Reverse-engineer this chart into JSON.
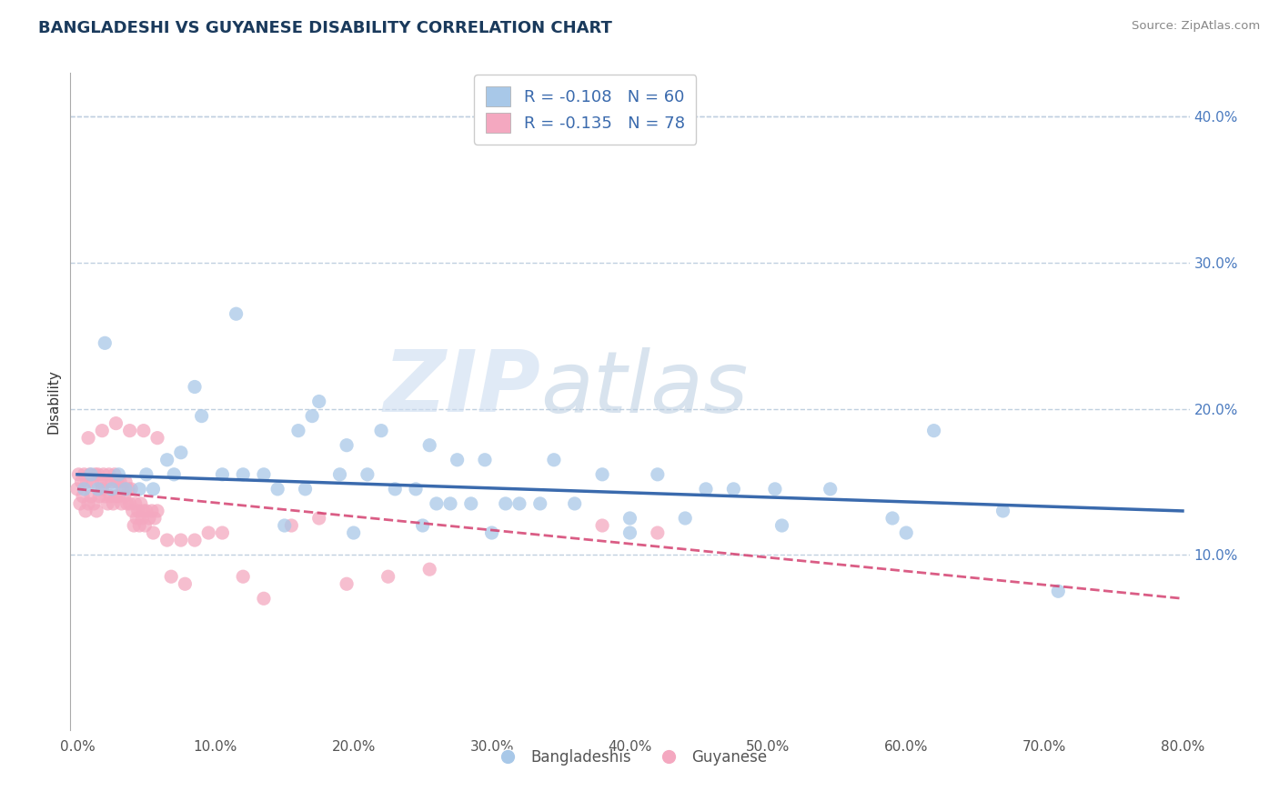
{
  "title": "BANGLADESHI VS GUYANESE DISABILITY CORRELATION CHART",
  "source_text": "Source: ZipAtlas.com",
  "ylabel": "Disability",
  "watermark": "ZIPatlas",
  "xlim": [
    -0.005,
    0.805
  ],
  "ylim": [
    -0.02,
    0.43
  ],
  "xticks": [
    0.0,
    0.1,
    0.2,
    0.3,
    0.4,
    0.5,
    0.6,
    0.7,
    0.8
  ],
  "xticklabels": [
    "0.0%",
    "10.0%",
    "20.0%",
    "30.0%",
    "40.0%",
    "50.0%",
    "60.0%",
    "70.0%",
    "80.0%"
  ],
  "yticks": [
    0.1,
    0.2,
    0.3,
    0.4
  ],
  "yticklabels": [
    "10.0%",
    "20.0%",
    "30.0%",
    "40.0%"
  ],
  "blue_color": "#a8c8e8",
  "pink_color": "#f4a8c0",
  "blue_line_color": "#3a6aad",
  "pink_line_color": "#d44070",
  "blue_R": -0.108,
  "blue_N": 60,
  "pink_R": -0.135,
  "pink_N": 78,
  "legend_label_blue": "Bangladeshis",
  "legend_label_pink": "Guyanese",
  "title_color": "#1a3a5c",
  "tick_color": "#555555",
  "grid_color": "#c0d0e0",
  "background_color": "#ffffff",
  "blue_trend_x0": 0.0,
  "blue_trend_y0": 0.155,
  "blue_trend_x1": 0.8,
  "blue_trend_y1": 0.13,
  "pink_trend_x0": 0.0,
  "pink_trend_y0": 0.145,
  "pink_trend_x1": 0.8,
  "pink_trend_y1": 0.07,
  "blue_scatter_x": [
    0.115,
    0.02,
    0.085,
    0.175,
    0.09,
    0.17,
    0.22,
    0.16,
    0.195,
    0.255,
    0.275,
    0.295,
    0.345,
    0.38,
    0.42,
    0.455,
    0.475,
    0.505,
    0.545,
    0.62,
    0.065,
    0.075,
    0.105,
    0.12,
    0.135,
    0.145,
    0.165,
    0.19,
    0.21,
    0.23,
    0.245,
    0.26,
    0.27,
    0.285,
    0.31,
    0.32,
    0.335,
    0.36,
    0.4,
    0.44,
    0.51,
    0.59,
    0.67,
    0.71,
    0.005,
    0.015,
    0.025,
    0.035,
    0.045,
    0.055,
    0.01,
    0.03,
    0.05,
    0.07,
    0.15,
    0.2,
    0.25,
    0.3,
    0.4,
    0.6
  ],
  "blue_scatter_y": [
    0.265,
    0.245,
    0.215,
    0.205,
    0.195,
    0.195,
    0.185,
    0.185,
    0.175,
    0.175,
    0.165,
    0.165,
    0.165,
    0.155,
    0.155,
    0.145,
    0.145,
    0.145,
    0.145,
    0.185,
    0.165,
    0.17,
    0.155,
    0.155,
    0.155,
    0.145,
    0.145,
    0.155,
    0.155,
    0.145,
    0.145,
    0.135,
    0.135,
    0.135,
    0.135,
    0.135,
    0.135,
    0.135,
    0.125,
    0.125,
    0.12,
    0.125,
    0.13,
    0.075,
    0.145,
    0.145,
    0.145,
    0.145,
    0.145,
    0.145,
    0.155,
    0.155,
    0.155,
    0.155,
    0.12,
    0.115,
    0.12,
    0.115,
    0.115,
    0.115
  ],
  "pink_scatter_x": [
    0.0,
    0.002,
    0.004,
    0.006,
    0.008,
    0.01,
    0.012,
    0.014,
    0.016,
    0.018,
    0.02,
    0.022,
    0.024,
    0.026,
    0.028,
    0.03,
    0.032,
    0.034,
    0.036,
    0.038,
    0.04,
    0.042,
    0.044,
    0.046,
    0.048,
    0.05,
    0.052,
    0.054,
    0.056,
    0.058,
    0.001,
    0.003,
    0.005,
    0.007,
    0.009,
    0.011,
    0.013,
    0.015,
    0.017,
    0.019,
    0.021,
    0.023,
    0.025,
    0.027,
    0.029,
    0.031,
    0.033,
    0.035,
    0.037,
    0.039,
    0.041,
    0.043,
    0.045,
    0.047,
    0.049,
    0.055,
    0.065,
    0.075,
    0.085,
    0.095,
    0.105,
    0.12,
    0.135,
    0.155,
    0.175,
    0.195,
    0.225,
    0.255,
    0.38,
    0.42,
    0.008,
    0.018,
    0.028,
    0.038,
    0.048,
    0.058,
    0.068,
    0.078
  ],
  "pink_scatter_y": [
    0.145,
    0.135,
    0.14,
    0.13,
    0.135,
    0.14,
    0.135,
    0.13,
    0.14,
    0.145,
    0.14,
    0.135,
    0.14,
    0.135,
    0.14,
    0.14,
    0.135,
    0.14,
    0.135,
    0.135,
    0.13,
    0.135,
    0.13,
    0.135,
    0.13,
    0.13,
    0.125,
    0.13,
    0.125,
    0.13,
    0.155,
    0.15,
    0.155,
    0.15,
    0.155,
    0.15,
    0.155,
    0.155,
    0.15,
    0.155,
    0.15,
    0.155,
    0.15,
    0.155,
    0.15,
    0.15,
    0.145,
    0.15,
    0.145,
    0.145,
    0.12,
    0.125,
    0.12,
    0.125,
    0.12,
    0.115,
    0.11,
    0.11,
    0.11,
    0.115,
    0.115,
    0.085,
    0.07,
    0.12,
    0.125,
    0.08,
    0.085,
    0.09,
    0.12,
    0.115,
    0.18,
    0.185,
    0.19,
    0.185,
    0.185,
    0.18,
    0.085,
    0.08
  ]
}
